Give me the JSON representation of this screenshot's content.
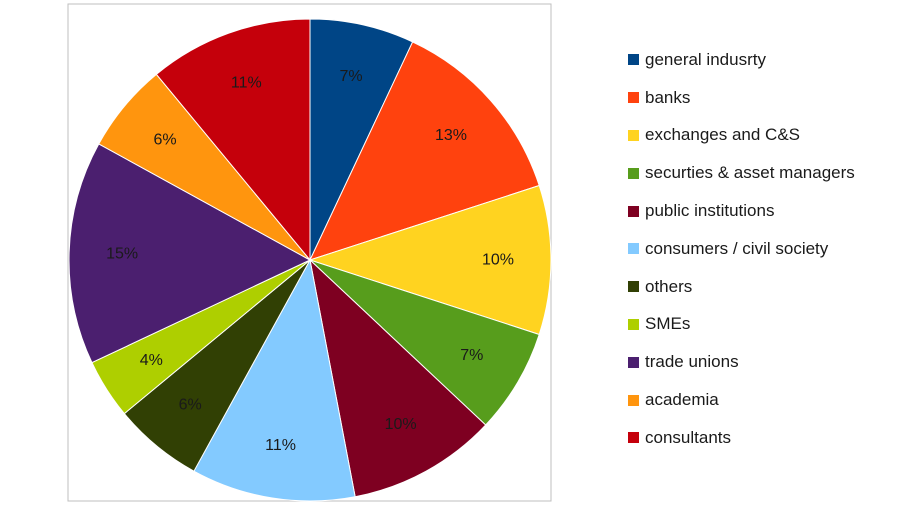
{
  "chart_data": {
    "type": "pie",
    "title": "",
    "start_angle_deg": 0,
    "direction": "clockwise",
    "legend_position": "right",
    "slices": [
      {
        "label": "general indusrty",
        "value": 7,
        "value_label": "7%",
        "color": "#004586"
      },
      {
        "label": "banks",
        "value": 13,
        "value_label": "13%",
        "color": "#ff420e"
      },
      {
        "label": "exchanges and C&S",
        "value": 10,
        "value_label": "10%",
        "color": "#ffd320"
      },
      {
        "label": "securties & asset managers",
        "value": 7,
        "value_label": "7%",
        "color": "#579d1c"
      },
      {
        "label": "public institutions",
        "value": 10,
        "value_label": "10%",
        "color": "#7e0021"
      },
      {
        "label": "consumers / civil society",
        "value": 11,
        "value_label": "11%",
        "color": "#83caff"
      },
      {
        "label": "others",
        "value": 6,
        "value_label": "6%",
        "color": "#314004"
      },
      {
        "label": "SMEs",
        "value": 4,
        "value_label": "4%",
        "color": "#aecf00"
      },
      {
        "label": "trade unions",
        "value": 15,
        "value_label": "15%",
        "color": "#4b1f6f"
      },
      {
        "label": "academia",
        "value": 6,
        "value_label": "6%",
        "color": "#ff950e"
      },
      {
        "label": "consultants",
        "value": 11,
        "value_label": "11%",
        "color": "#c5000b"
      }
    ]
  }
}
